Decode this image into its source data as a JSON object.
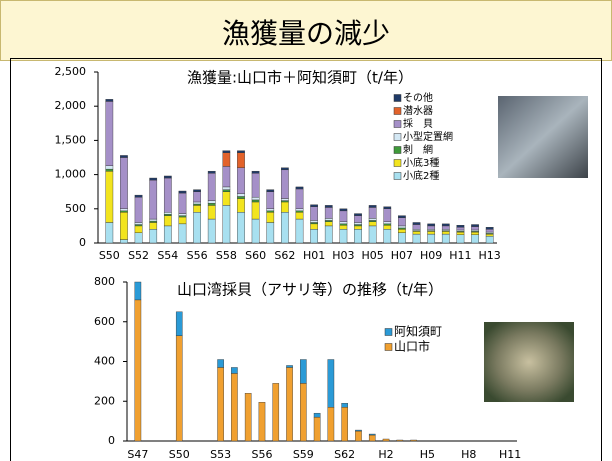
{
  "slide": {
    "title": "漁獲量の減少"
  },
  "chart_data": [
    {
      "type": "bar",
      "stacked": true,
      "title": "漁獲量:山口市＋阿知須町（t/年）",
      "categories": [
        "S50",
        null,
        "S52",
        null,
        "S54",
        null,
        "S56",
        null,
        "S58",
        null,
        "S60",
        null,
        "S62",
        null,
        "H01",
        null,
        "H03",
        null,
        "H05",
        null,
        "H07",
        null,
        "H09",
        null,
        "H11",
        null,
        "H13"
      ],
      "ylim": [
        0,
        2500
      ],
      "yticks": [
        0,
        500,
        {
          "value": 1000,
          "label": "1,000"
        },
        {
          "value": 1500,
          "label": "1,500"
        },
        {
          "value": 2000,
          "label": "2,000"
        },
        {
          "value": 2500,
          "label": "2,500"
        }
      ],
      "series": [
        {
          "name": "小底2種",
          "color": "#a8e0f0",
          "values": [
            300,
            50,
            150,
            200,
            250,
            280,
            450,
            350,
            550,
            450,
            350,
            300,
            450,
            350,
            200,
            250,
            200,
            200,
            250,
            200,
            150,
            130,
            130,
            130,
            120,
            120,
            100
          ]
        },
        {
          "name": "小底3種",
          "color": "#f2e41e",
          "values": [
            750,
            400,
            100,
            100,
            150,
            100,
            100,
            200,
            200,
            200,
            250,
            150,
            150,
            100,
            80,
            60,
            60,
            50,
            60,
            60,
            50,
            40,
            40,
            40,
            40,
            40,
            30
          ]
        },
        {
          "name": "刺　網",
          "color": "#3f9a3a",
          "values": [
            30,
            20,
            20,
            20,
            20,
            20,
            20,
            30,
            30,
            30,
            30,
            20,
            20,
            20,
            20,
            20,
            20,
            20,
            20,
            20,
            20,
            10,
            10,
            10,
            10,
            10,
            10
          ]
        },
        {
          "name": "小型定置網",
          "color": "#d4e8f4",
          "values": [
            50,
            30,
            30,
            30,
            30,
            30,
            30,
            40,
            40,
            40,
            40,
            30,
            30,
            30,
            30,
            30,
            30,
            30,
            30,
            30,
            30,
            20,
            20,
            20,
            20,
            20,
            20
          ]
        },
        {
          "name": "採　貝",
          "color": "#a590c8",
          "values": [
            940,
            750,
            370,
            570,
            500,
            300,
            150,
            400,
            300,
            380,
            350,
            250,
            420,
            290,
            200,
            160,
            160,
            100,
            160,
            190,
            120,
            70,
            50,
            50,
            40,
            50,
            40
          ]
        },
        {
          "name": "潜水器",
          "color": "#e2622a",
          "values": [
            0,
            0,
            0,
            0,
            0,
            0,
            0,
            0,
            200,
            220,
            0,
            0,
            0,
            0,
            0,
            0,
            0,
            0,
            0,
            0,
            0,
            0,
            0,
            0,
            0,
            0,
            0
          ]
        },
        {
          "name": "その他",
          "color": "#1f3a68",
          "values": [
            30,
            30,
            30,
            30,
            30,
            30,
            30,
            30,
            30,
            30,
            30,
            30,
            30,
            30,
            30,
            30,
            30,
            30,
            30,
            30,
            30,
            30,
            30,
            30,
            30,
            30,
            30
          ]
        }
      ]
    },
    {
      "type": "bar",
      "stacked": true,
      "title": "山口湾採貝（アサリ等）の推移（t/年）",
      "categories": [
        "S47",
        null,
        null,
        "S50",
        null,
        null,
        "S53",
        null,
        null,
        "S56",
        null,
        null,
        "S59",
        null,
        null,
        "S62",
        null,
        null,
        "H2",
        null,
        null,
        "H5",
        null,
        null,
        "H8",
        null,
        null,
        "H11"
      ],
      "ylim": [
        0,
        800
      ],
      "yticks": [
        0,
        200,
        400,
        600,
        800
      ],
      "series": [
        {
          "name": "山口市",
          "color": "#f0a030",
          "values": [
            710,
            0,
            0,
            530,
            0,
            0,
            370,
            340,
            240,
            195,
            290,
            370,
            290,
            120,
            170,
            170,
            50,
            30,
            10,
            5,
            5,
            0,
            0,
            0,
            0,
            0,
            0,
            0
          ]
        },
        {
          "name": "阿知須町",
          "color": "#2a9ad6",
          "values": [
            90,
            0,
            0,
            120,
            0,
            0,
            40,
            30,
            0,
            0,
            0,
            10,
            120,
            20,
            240,
            20,
            5,
            5,
            0,
            0,
            0,
            0,
            0,
            0,
            0,
            0,
            0,
            0
          ]
        }
      ]
    }
  ]
}
